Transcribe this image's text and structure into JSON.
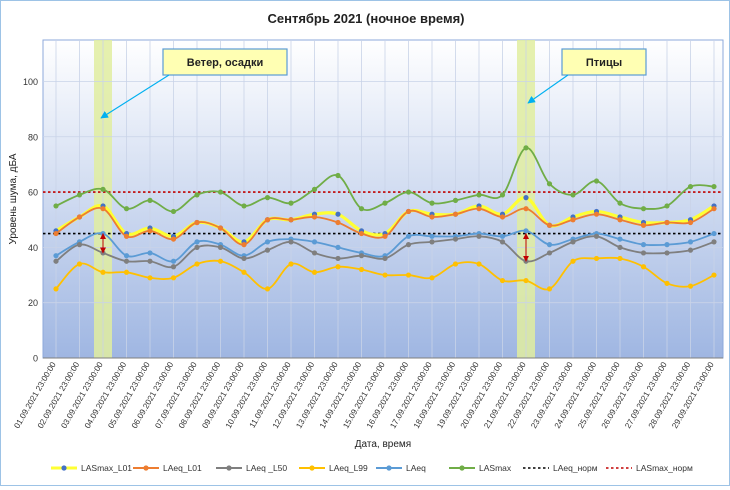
{
  "chart_data": {
    "type": "line",
    "title": "Сентябрь 2021 (ночное время)",
    "xlabel": "Дата, время",
    "ylabel": "Уровень шума, дБА",
    "ylim": [
      0,
      115
    ],
    "yticks": [
      0,
      20,
      40,
      60,
      80,
      100
    ],
    "grid": true,
    "legend_position": "bottom",
    "categories": [
      "01.09.2021 23:00:00",
      "02.09.2021 23:00:00",
      "03.09.2021 23:00:00",
      "04.09.2021 23:00:00",
      "05.09.2021 23:00:00",
      "06.09.2021 23:00:00",
      "07.09.2021 23:00:00",
      "08.09.2021 23:00:00",
      "09.09.2021 23:00:00",
      "10.09.2021 23:00:00",
      "11.09.2021 23:00:00",
      "12.09.2021 23:00:00",
      "13.09.2021 23:00:00",
      "14.09.2021 23:00:00",
      "15.09.2021 23:00:00",
      "16.09.2021 23:00:00",
      "17.09.2021 23:00:00",
      "18.09.2021 23:00:00",
      "19.09.2021 23:00:00",
      "20.09.2021 23:00:00",
      "21.09.2021 23:00:00",
      "22.09.2021 23:00:00",
      "23.09.2021 23:00:00",
      "24.09.2021 23:00:00",
      "25.09.2021 23:00:00",
      "26.09.2021 23:00:00",
      "27.09.2021 23:00:00",
      "28.09.2021 23:00:00",
      "29.09.2021 23:00:00"
    ],
    "series": [
      {
        "name": "LASmax_L01",
        "color": "#ffff33",
        "marker": "#4472c4",
        "values": [
          46,
          51,
          55,
          45,
          47,
          44,
          49,
          47,
          42,
          50,
          50,
          52,
          52,
          46,
          45,
          53,
          52,
          52,
          55,
          52,
          58,
          48,
          51,
          53,
          51,
          49,
          49,
          50,
          55
        ]
      },
      {
        "name": "LAeq_L01",
        "color": "#ed7d31",
        "values": [
          45,
          51,
          54,
          44,
          46,
          43,
          49,
          47,
          41,
          50,
          50,
          51,
          49,
          45,
          44,
          53,
          51,
          52,
          54,
          51,
          54,
          48,
          50,
          52,
          50,
          48,
          49,
          49,
          54
        ]
      },
      {
        "name": "LAeq _L50",
        "color": "#7f7f7f",
        "values": [
          35,
          41,
          38,
          35,
          35,
          33,
          40,
          40,
          36,
          39,
          42,
          38,
          36,
          37,
          36,
          41,
          42,
          43,
          44,
          42,
          35,
          38,
          42,
          44,
          40,
          38,
          38,
          39,
          42
        ]
      },
      {
        "name": "LAeq_L99",
        "color": "#ffc000",
        "values": [
          25,
          34,
          31,
          31,
          29,
          29,
          34,
          35,
          31,
          25,
          34,
          31,
          33,
          32,
          30,
          30,
          29,
          34,
          34,
          28,
          28,
          25,
          35,
          36,
          36,
          33,
          27,
          26,
          30
        ]
      },
      {
        "name": "LAeq",
        "color": "#5b9bd5",
        "values": [
          37,
          42,
          45,
          37,
          38,
          35,
          42,
          41,
          37,
          42,
          43,
          42,
          40,
          38,
          37,
          44,
          44,
          44,
          45,
          44,
          46,
          41,
          43,
          45,
          43,
          41,
          41,
          42,
          45
        ]
      },
      {
        "name": "LASmax",
        "color": "#70ad47",
        "values": [
          55,
          59,
          61,
          54,
          57,
          53,
          59,
          60,
          55,
          58,
          56,
          61,
          66,
          54,
          56,
          60,
          56,
          57,
          59,
          59,
          76,
          63,
          59,
          64,
          56,
          54,
          55,
          62,
          62
        ]
      },
      {
        "name": "LAeq_норм",
        "color": "#000000",
        "dashed": true,
        "constant": 45
      },
      {
        "name": "LASmax_норм",
        "color": "#c00000",
        "dashed": true,
        "constant": 60
      }
    ],
    "annotations": [
      {
        "text": "Ветер, осадки",
        "category": "03.09.2021 23:00:00",
        "arrow_from_value": 45,
        "arrow_to_value": 38
      },
      {
        "text": "Птицы",
        "category": "21.09.2021 23:00:00",
        "arrow_from_value": 45,
        "arrow_to_value": 35
      }
    ],
    "colors": {
      "plot_top": "#ffffff",
      "plot_bottom": "#9fb6e2",
      "highlight": "#e0eda0",
      "callout_fill": "#ffffb3",
      "callout_border": "#5b9bd5",
      "callout_arrow": "#00b0f0",
      "event_arrow": "#c00000"
    }
  }
}
